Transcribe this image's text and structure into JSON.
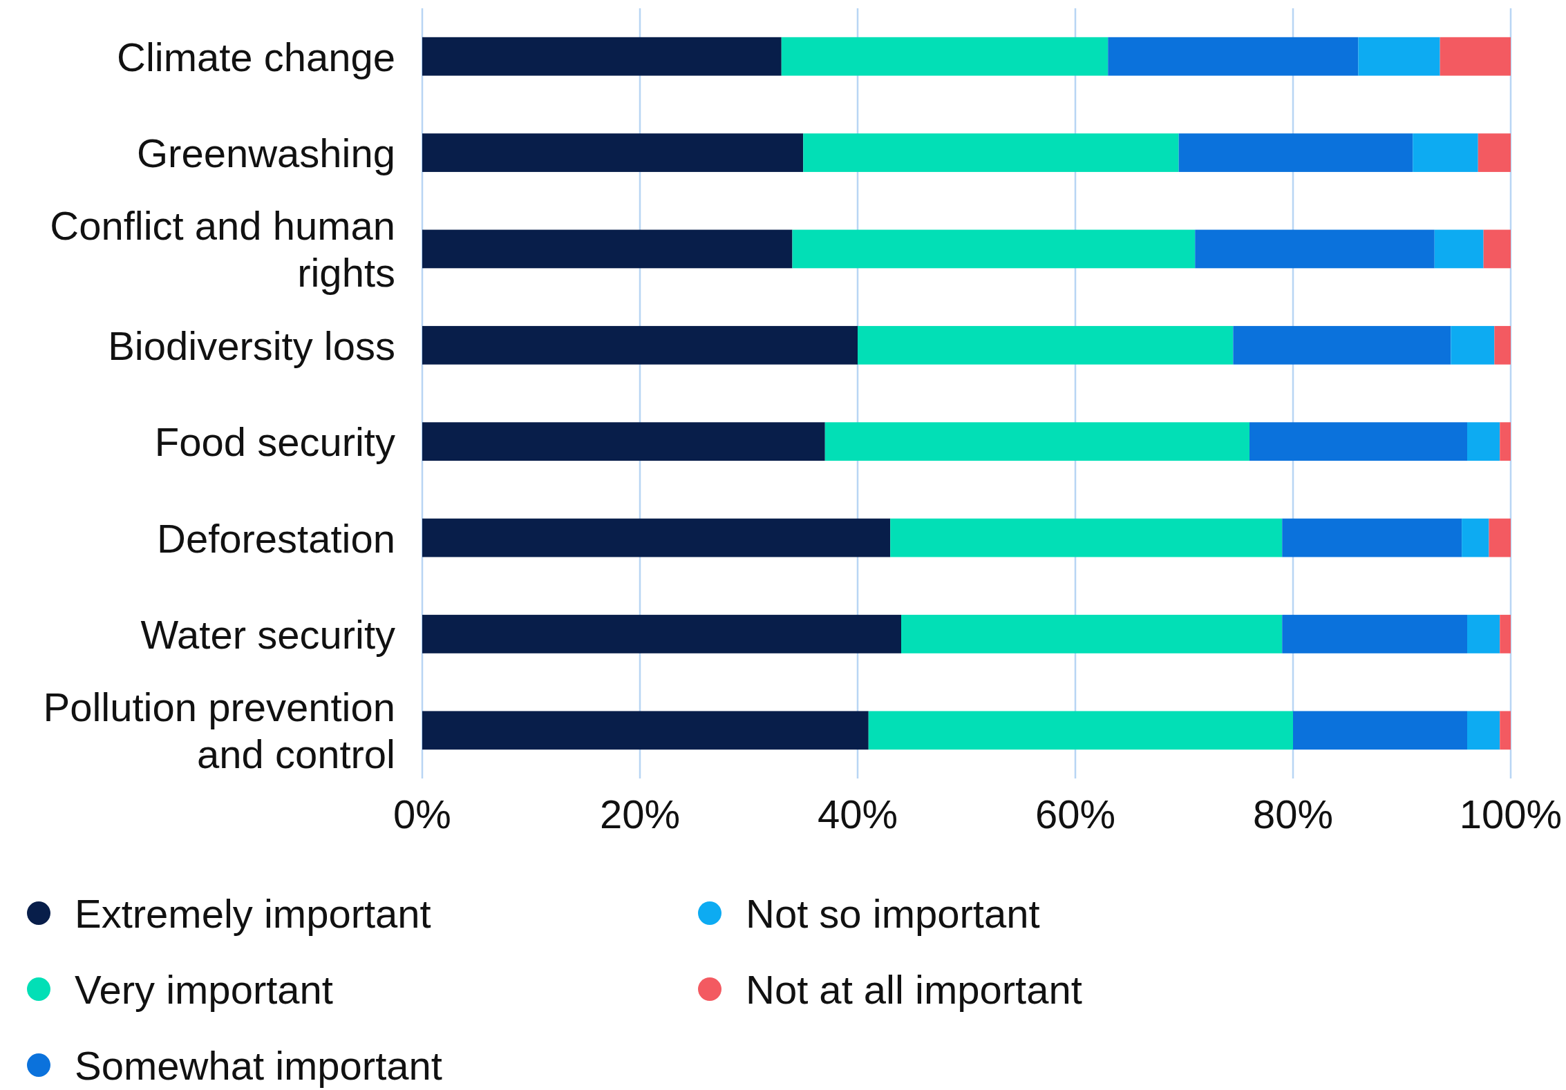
{
  "chart_data": {
    "type": "bar",
    "orientation": "horizontal",
    "stacked": true,
    "categories": [
      "Climate change",
      "Greenwashing",
      "Conflict and human rights",
      "Biodiversity loss",
      "Food security",
      "Deforestation",
      "Water security",
      "Pollution prevention and control"
    ],
    "series": [
      {
        "name": "Extremely important",
        "color": "#081e4a",
        "values": [
          33,
          35,
          34,
          40,
          37,
          43,
          44,
          41
        ]
      },
      {
        "name": "Very important",
        "color": "#02dfb6",
        "values": [
          30,
          34.5,
          37,
          34.5,
          39,
          36,
          35,
          39
        ]
      },
      {
        "name": "Somewhat important",
        "color": "#0b72dc",
        "values": [
          23,
          21.5,
          22,
          20,
          20,
          16.5,
          17,
          16
        ]
      },
      {
        "name": "Not so important",
        "color": "#0dabf2",
        "values": [
          7.5,
          6,
          4.5,
          4,
          3,
          2.5,
          3,
          3
        ]
      },
      {
        "name": "Not at all important",
        "color": "#f35a61",
        "values": [
          6.5,
          3,
          2.5,
          1.5,
          1,
          2,
          1,
          1
        ]
      }
    ],
    "xlim": [
      0,
      100
    ],
    "xticks": [
      {
        "value": 0,
        "label": "0%"
      },
      {
        "value": 20,
        "label": "20%"
      },
      {
        "value": 40,
        "label": "40%"
      },
      {
        "value": 60,
        "label": "60%"
      },
      {
        "value": 80,
        "label": "80%"
      },
      {
        "value": 100,
        "label": "100%"
      }
    ],
    "grid": "x",
    "legend": "bottom"
  }
}
